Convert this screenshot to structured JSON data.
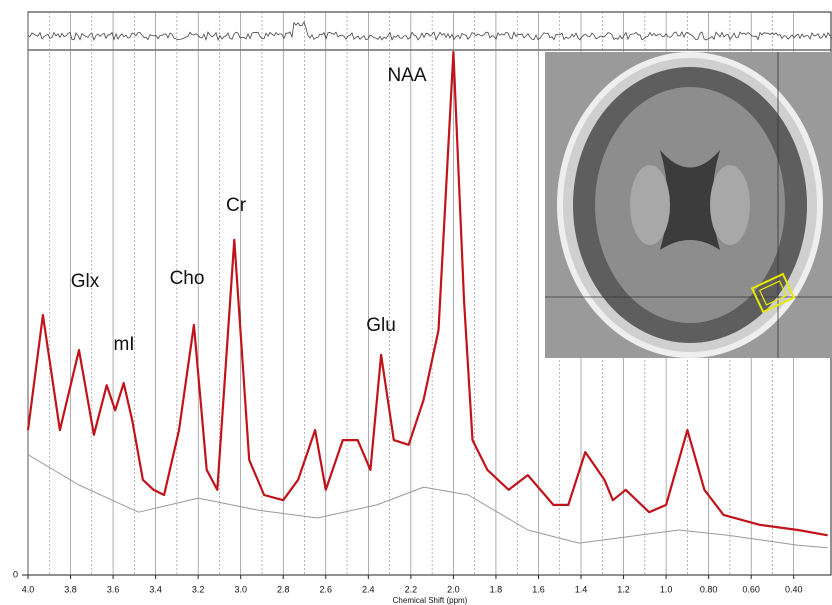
{
  "chart_data": {
    "type": "line",
    "x_label": "Chemical Shift (ppm)",
    "xlim": [
      4.0,
      0.22
    ],
    "ylim": [
      0,
      100
    ],
    "xticks": [
      {
        "value": 4,
        "label": "4.0"
      },
      3.8,
      3.6,
      3.4,
      3.2,
      {
        "value": 3,
        "label": "3.0"
      },
      2.8,
      2.6,
      2.4,
      2.2,
      {
        "value": 2,
        "label": "2.0"
      },
      1.8,
      1.6,
      1.4,
      1.2,
      {
        "value": 1,
        "label": "1.0"
      },
      {
        "value": 0.8,
        "label": "0.80"
      },
      {
        "value": 0.6,
        "label": "0.60"
      },
      {
        "value": 0.4,
        "label": "0.40"
      }
    ],
    "yticks": [
      0
    ],
    "grid": true,
    "annotations": [
      "Glx",
      "mI",
      "Cho",
      "Cr",
      "Glu",
      "NAA"
    ],
    "series": [
      {
        "color": "#c0141a",
        "x": [
          4.0,
          3.93,
          3.85,
          3.76,
          3.69,
          3.63,
          3.59,
          3.55,
          3.51,
          3.46,
          3.41,
          3.36,
          3.29,
          3.22,
          3.16,
          3.11,
          3.03,
          2.96,
          2.89,
          2.8,
          2.73,
          2.65,
          2.6,
          2.52,
          2.45,
          2.39,
          2.34,
          2.28,
          2.21,
          2.14,
          2.07,
          2.0,
          1.95,
          1.91,
          1.84,
          1.74,
          1.65,
          1.53,
          1.46,
          1.38,
          1.29,
          1.25,
          1.19,
          1.08,
          1.0,
          0.9,
          0.82,
          0.73,
          0.56,
          0.38,
          0.24
        ],
        "values": [
          27.7,
          49.7,
          27.7,
          43.0,
          26.8,
          36.3,
          31.5,
          36.7,
          29.6,
          18.2,
          16.3,
          15.3,
          27.7,
          47.8,
          20.1,
          16.3,
          64.1,
          22.0,
          15.3,
          14.3,
          18.2,
          27.7,
          16.3,
          25.8,
          25.8,
          20.1,
          42.1,
          25.8,
          24.9,
          33.5,
          46.8,
          100,
          52.6,
          25.8,
          20.1,
          16.3,
          19.1,
          13.4,
          13.4,
          23.5,
          18.2,
          14.3,
          16.3,
          12.0,
          13.4,
          27.7,
          16.3,
          11.5,
          9.6,
          8.6,
          7.6
        ]
      },
      {
        "color": "#999999",
        "x": [
          4.0,
          3.76,
          3.48,
          3.2,
          2.92,
          2.64,
          2.36,
          2.14,
          1.93,
          1.65,
          1.41,
          1.13,
          0.94,
          0.71,
          0.38,
          0.24
        ],
        "values": [
          23.0,
          17.2,
          12.0,
          14.7,
          12.4,
          10.9,
          13.4,
          16.8,
          15.3,
          8.6,
          6.1,
          7.6,
          8.6,
          7.6,
          5.7,
          5.2
        ]
      }
    ]
  }
}
